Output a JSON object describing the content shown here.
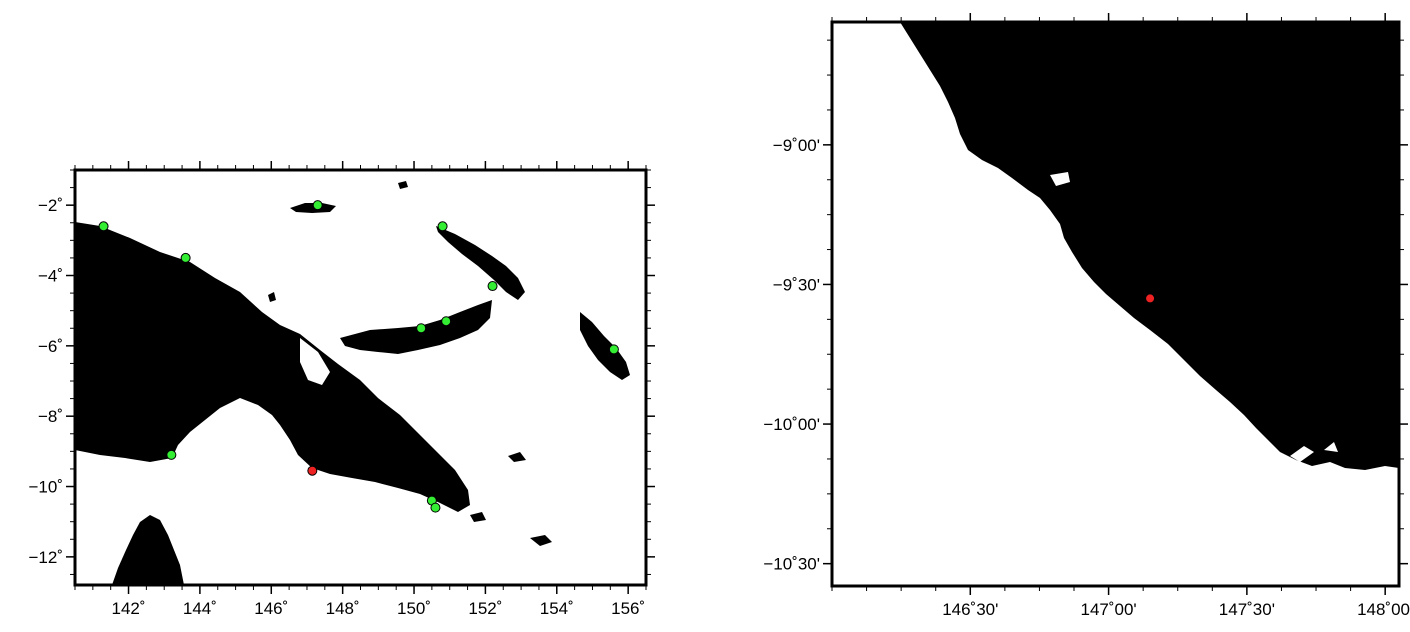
{
  "maps": [
    {
      "id": "overview",
      "x_ticks": [
        {
          "value": 142,
          "label": "142˚"
        },
        {
          "value": 144,
          "label": "144˚"
        },
        {
          "value": 146,
          "label": "146˚"
        },
        {
          "value": 148,
          "label": "148˚"
        },
        {
          "value": 150,
          "label": "150˚"
        },
        {
          "value": 152,
          "label": "152˚"
        },
        {
          "value": 154,
          "label": "154˚"
        },
        {
          "value": 156,
          "label": "156˚"
        }
      ],
      "y_ticks": [
        {
          "value": -2,
          "label": "−2˚"
        },
        {
          "value": -4,
          "label": "−4˚"
        },
        {
          "value": -6,
          "label": "−6˚"
        },
        {
          "value": -8,
          "label": "−8˚"
        },
        {
          "value": -10,
          "label": "−10˚"
        },
        {
          "value": -12,
          "label": "−12˚"
        }
      ],
      "xlim": [
        140.5,
        156.5
      ],
      "ylim": [
        -12.8,
        -1
      ]
    },
    {
      "id": "inset",
      "x_ticks": [
        {
          "value": 146.5,
          "label": "146˚30'"
        },
        {
          "value": 147.0,
          "label": "147˚00'"
        },
        {
          "value": 147.5,
          "label": "147˚30'"
        },
        {
          "value": 148.0,
          "label": "148˚00'"
        }
      ],
      "y_ticks": [
        {
          "value": -9.0,
          "label": "−9˚00'"
        },
        {
          "value": -9.5,
          "label": "−9˚30'"
        },
        {
          "value": -10.0,
          "label": "−10˚00'"
        },
        {
          "value": -10.5,
          "label": "−10˚30'"
        }
      ],
      "xlim": [
        146.0,
        148.05
      ],
      "ylim": [
        -10.58,
        -8.56
      ]
    }
  ],
  "stations": {
    "green": [
      {
        "lon": 141.3,
        "lat": -2.6
      },
      {
        "lon": 143.6,
        "lat": -3.5
      },
      {
        "lon": 147.3,
        "lat": -2.0
      },
      {
        "lon": 150.8,
        "lat": -2.6
      },
      {
        "lon": 152.2,
        "lat": -4.3
      },
      {
        "lon": 150.2,
        "lat": -5.5
      },
      {
        "lon": 150.9,
        "lat": -5.3
      },
      {
        "lon": 155.6,
        "lat": -6.1
      },
      {
        "lon": 143.2,
        "lat": -9.1
      },
      {
        "lon": 150.5,
        "lat": -10.4
      },
      {
        "lon": 150.6,
        "lat": -10.6
      }
    ],
    "red": {
      "lon": 147.15,
      "lat": -9.55
    }
  },
  "colors": {
    "land": "#000000",
    "sea": "#ffffff",
    "station_green": "#33ee33",
    "station_red": "#ee2222"
  }
}
